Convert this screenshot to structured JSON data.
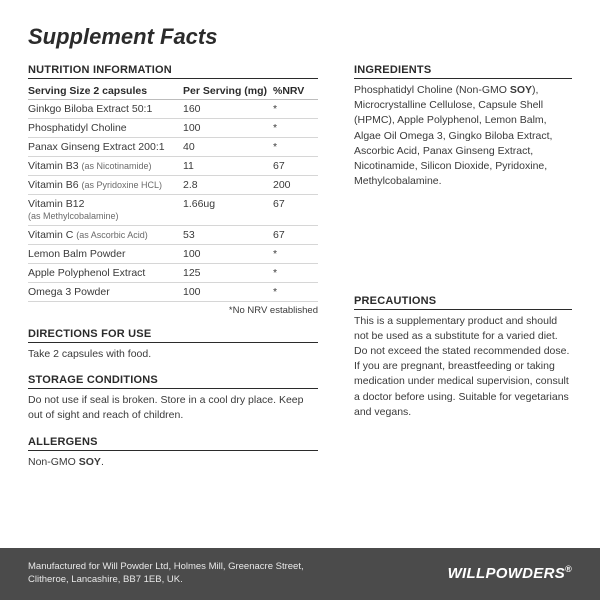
{
  "title": "Supplement Facts",
  "nutrition": {
    "heading": "NUTRITION INFORMATION",
    "serving_label": "Serving Size 2 capsules",
    "col_per_serving": "Per Serving (mg)",
    "col_nrv": "%NRV",
    "rows": [
      {
        "name": "Ginkgo Biloba Extract 50:1",
        "sub": "",
        "per": "160",
        "nrv": "*"
      },
      {
        "name": "Phosphatidyl Choline",
        "sub": "",
        "per": "100",
        "nrv": "*"
      },
      {
        "name": "Panax Ginseng Extract 200:1",
        "sub": "",
        "per": "40",
        "nrv": "*"
      },
      {
        "name": "Vitamin B3",
        "sub": "(as Nicotinamide)",
        "per": "11",
        "nrv": "67"
      },
      {
        "name": "Vitamin B6",
        "sub": "(as Pyridoxine HCL)",
        "per": "2.8",
        "nrv": "200"
      },
      {
        "name": "Vitamin B12",
        "sub": "(as Methylcobalamine)",
        "per": "1.66ug",
        "nrv": "67",
        "sub_below": true
      },
      {
        "name": "Vitamin C",
        "sub": "(as Ascorbic Acid)",
        "per": "53",
        "nrv": "67"
      },
      {
        "name": "Lemon Balm Powder",
        "sub": "",
        "per": "100",
        "nrv": "*"
      },
      {
        "name": "Apple Polyphenol Extract",
        "sub": "",
        "per": "125",
        "nrv": "*"
      },
      {
        "name": "Omega 3 Powder",
        "sub": "",
        "per": "100",
        "nrv": "*"
      }
    ],
    "footnote": "*No NRV established"
  },
  "directions": {
    "heading": "DIRECTIONS FOR USE",
    "body": "Take 2 capsules with food."
  },
  "storage": {
    "heading": "STORAGE CONDITIONS",
    "body": "Do not use if seal is broken. Store in a cool dry place. Keep out of sight and reach of children."
  },
  "allergens": {
    "heading": "ALLERGENS",
    "prefix": "Non-GMO ",
    "bold": "SOY",
    "suffix": "."
  },
  "ingredients": {
    "heading": "INGREDIENTS",
    "pre": "Phosphatidyl Choline (Non-GMO ",
    "bold": "SOY",
    "post": "), Microcrystalline Cellulose, Capsule Shell (HPMC), Apple Polyphenol, Lemon Balm, Algae Oil Omega 3, Gingko Biloba Extract, Ascorbic Acid, Panax Ginseng Extract, Nicotinamide, Silicon Dioxide, Pyridoxine, Methylcobalamine."
  },
  "precautions": {
    "heading": "PRECAUTIONS",
    "body": "This is a supplementary product and should not be used as a substitute for a varied diet. Do not exceed the stated recommended dose. If you are pregnant, breastfeeding or taking medication under medical supervision, consult a doctor before using. Suitable for vegetarians and vegans."
  },
  "footer": {
    "text": "Manufactured for Will Powder Ltd, Holmes Mill, Greenacre Street, Clitheroe, Lancashire, BB7 1EB, UK.",
    "brand": "WILLPOWDERS",
    "reg": "®"
  }
}
